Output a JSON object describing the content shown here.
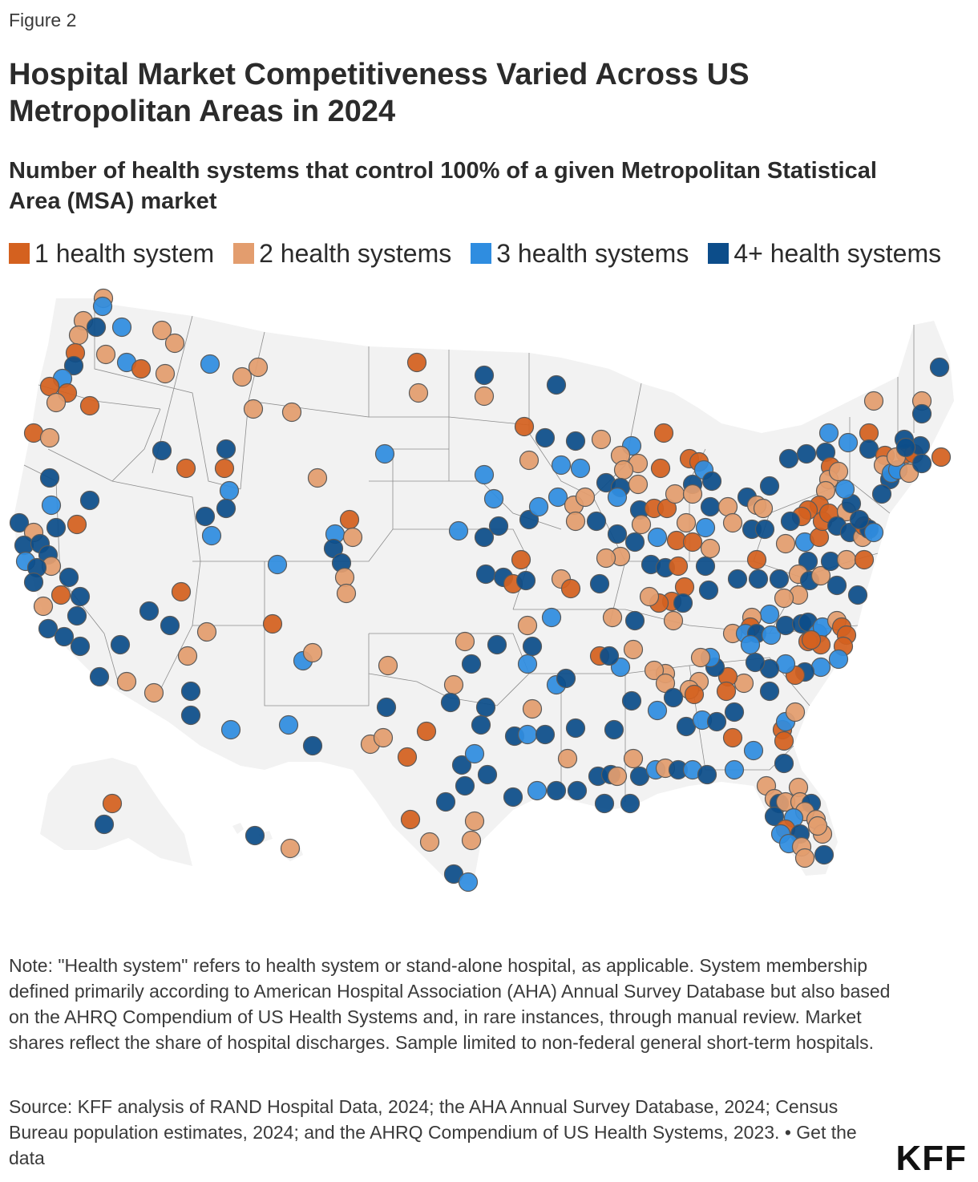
{
  "figure_label": "Figure 2",
  "title": "Hospital Market Competitiveness Varied Across US Metropolitan Areas in 2024",
  "subtitle": "Number of health systems that control 100% of a given Metropolitan Statistical Area (MSA) market",
  "legend": [
    {
      "label": "1 health system",
      "color": "#d4611f"
    },
    {
      "label": "2 health systems",
      "color": "#e39d6e"
    },
    {
      "label": "3 health systems",
      "color": "#2f8de0"
    },
    {
      "label": "4+ health systems",
      "color": "#0c4d8a"
    }
  ],
  "map": {
    "land_color": "#f2f2f2",
    "border_color": "#8c8c8c",
    "marker_outline": "#5a5a5a"
  },
  "note": "Note: \"Health system\" refers to health system or stand-alone hospital, as applicable. System membership defined primarily according to American Hospital Association (AHA) Annual Survey Database but also based on the AHRQ Compendium of US Health Systems and, in rare instances, through manual review. Market shares reflect the share of hospital discharges. Sample limited to non-federal general short-term hospitals.",
  "source": "Source: KFF analysis of RAND Hospital Data, 2024; the AHA Annual Survey Database, 2024; Census Bureau population estimates, 2024; and the AHRQ Compendium of US Health Systems, 2023. •",
  "get_data_link": "Get the data",
  "logo": "KFF"
}
